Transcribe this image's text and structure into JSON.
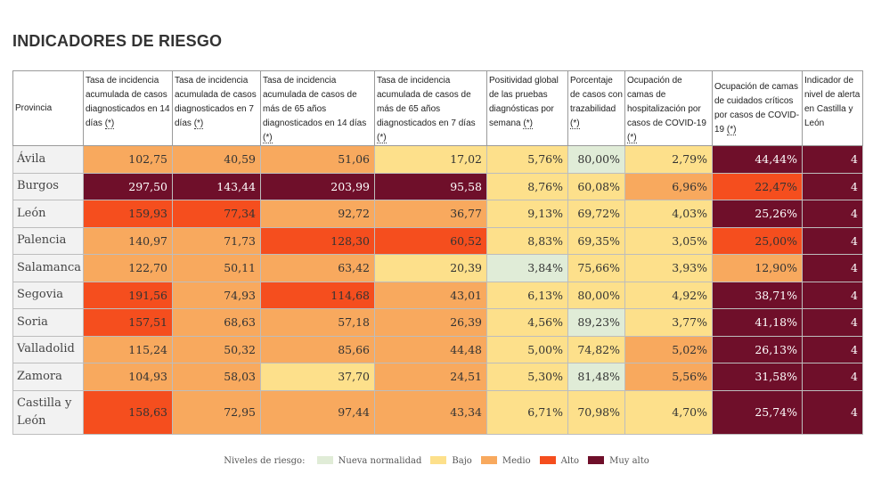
{
  "title": "INDICADORES DE RIESGO",
  "headers": [
    {
      "text": "Provincia",
      "ast": ""
    },
    {
      "text": "Tasa de incidencia acumulada de casos diagnosticados en 14 días ",
      "ast": "(*)"
    },
    {
      "text": "Tasa de incidencia acumulada de casos diagnosticados en 7 días ",
      "ast": "(*)"
    },
    {
      "text": "Tasa de incidencia acumulada de casos de más de 65 años diagnosticados en 14 días ",
      "ast": "(*)"
    },
    {
      "text": "Tasa de incidencia acumulada de casos de más de 65 años diagnosticados en 7 días ",
      "ast": "(*)"
    },
    {
      "text": "Positividad global de las pruebas diagnósticas por semana ",
      "ast": "(*)"
    },
    {
      "text": "Porcentaje de casos con trazabilidad ",
      "ast": "(*)"
    },
    {
      "text": "Ocupación de camas de hospitalización por casos de COVID-19 ",
      "ast": "(*)"
    },
    {
      "text": "Ocupación de camas de cuidados críticos por casos de COVID-19 ",
      "ast": "(*)"
    },
    {
      "text": "Indicador de nivel de alerta en Castilla y León",
      "ast": ""
    }
  ],
  "rows": [
    {
      "provincia": "Ávila",
      "values": [
        "102,75",
        "40,59",
        "51,06",
        "17,02",
        "5,76%",
        "80,00%",
        "2,79%",
        "44,44%",
        "4"
      ],
      "levels": [
        "medio",
        "medio",
        "medio",
        "bajo",
        "bajo",
        "nn",
        "bajo",
        "muyalto",
        "muyalto"
      ]
    },
    {
      "provincia": "Burgos",
      "values": [
        "297,50",
        "143,44",
        "203,99",
        "95,58",
        "8,76%",
        "60,08%",
        "6,96%",
        "22,47%",
        "4"
      ],
      "levels": [
        "muyalto",
        "muyalto",
        "muyalto",
        "muyalto",
        "bajo",
        "bajo",
        "medio",
        "alto",
        "muyalto"
      ]
    },
    {
      "provincia": "León",
      "values": [
        "159,93",
        "77,34",
        "92,72",
        "36,77",
        "9,13%",
        "69,72%",
        "4,03%",
        "25,26%",
        "4"
      ],
      "levels": [
        "alto",
        "alto",
        "medio",
        "medio",
        "bajo",
        "bajo",
        "bajo",
        "muyalto",
        "muyalto"
      ]
    },
    {
      "provincia": "Palencia",
      "values": [
        "140,97",
        "71,73",
        "128,30",
        "60,52",
        "8,83%",
        "69,35%",
        "3,05%",
        "25,00%",
        "4"
      ],
      "levels": [
        "medio",
        "medio",
        "alto",
        "alto",
        "bajo",
        "bajo",
        "bajo",
        "alto",
        "muyalto"
      ]
    },
    {
      "provincia": "Salamanca",
      "values": [
        "122,70",
        "50,11",
        "63,42",
        "20,39",
        "3,84%",
        "75,66%",
        "3,93%",
        "12,90%",
        "4"
      ],
      "levels": [
        "medio",
        "medio",
        "medio",
        "bajo",
        "nn",
        "bajo",
        "bajo",
        "medio",
        "muyalto"
      ]
    },
    {
      "provincia": "Segovia",
      "values": [
        "191,56",
        "74,93",
        "114,68",
        "43,01",
        "6,13%",
        "80,00%",
        "4,92%",
        "38,71%",
        "4"
      ],
      "levels": [
        "alto",
        "medio",
        "alto",
        "medio",
        "bajo",
        "bajo",
        "bajo",
        "muyalto",
        "muyalto"
      ]
    },
    {
      "provincia": "Soria",
      "values": [
        "157,51",
        "68,63",
        "57,18",
        "26,39",
        "4,56%",
        "89,23%",
        "3,77%",
        "41,18%",
        "4"
      ],
      "levels": [
        "alto",
        "medio",
        "medio",
        "medio",
        "bajo",
        "nn",
        "bajo",
        "muyalto",
        "muyalto"
      ]
    },
    {
      "provincia": "Valladolid",
      "values": [
        "115,24",
        "50,32",
        "85,66",
        "44,48",
        "5,00%",
        "74,82%",
        "5,02%",
        "26,13%",
        "4"
      ],
      "levels": [
        "medio",
        "medio",
        "medio",
        "medio",
        "bajo",
        "bajo",
        "medio",
        "muyalto",
        "muyalto"
      ]
    },
    {
      "provincia": "Zamora",
      "values": [
        "104,93",
        "58,03",
        "37,70",
        "24,51",
        "5,30%",
        "81,48%",
        "5,56%",
        "31,58%",
        "4"
      ],
      "levels": [
        "medio",
        "medio",
        "bajo",
        "medio",
        "bajo",
        "nn",
        "medio",
        "muyalto",
        "muyalto"
      ]
    },
    {
      "provincia": "Castilla y León",
      "values": [
        "158,63",
        "72,95",
        "97,44",
        "43,34",
        "6,71%",
        "70,98%",
        "4,70%",
        "25,74%",
        "4"
      ],
      "levels": [
        "alto",
        "medio",
        "medio",
        "medio",
        "bajo",
        "bajo",
        "bajo",
        "muyalto",
        "muyalto"
      ]
    }
  ],
  "legend": {
    "label": "Niveles de riesgo:",
    "items": [
      {
        "key": "nn",
        "label": "Nueva normalidad",
        "color": "#e0ecd7"
      },
      {
        "key": "bajo",
        "label": "Bajo",
        "color": "#fde08b"
      },
      {
        "key": "medio",
        "label": "Medio",
        "color": "#f8a95e"
      },
      {
        "key": "alto",
        "label": "Alto",
        "color": "#f54e1e"
      },
      {
        "key": "muyalto",
        "label": "Muy alto",
        "color": "#6f0f2a"
      }
    ]
  }
}
